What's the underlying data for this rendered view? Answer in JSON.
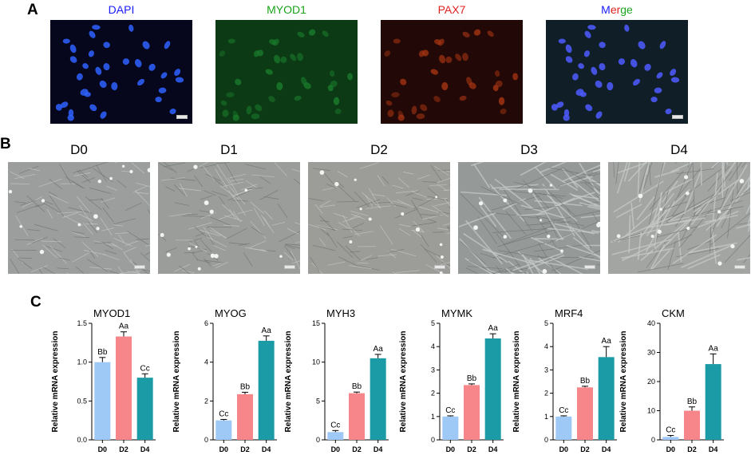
{
  "panels": {
    "a": "A",
    "b": "B",
    "c": "C"
  },
  "fluorescence": [
    {
      "title": "DAPI",
      "color": "#1a1aff",
      "bg": "#06061c",
      "dot": "#2f63ff"
    },
    {
      "title": "MYOD1",
      "color": "#1aa31a",
      "bg": "#0b3a14",
      "dot": "#1a7a2c"
    },
    {
      "title": "PAX7",
      "color": "#e02020",
      "bg": "#220806",
      "dot": "#a23312"
    },
    {
      "title_parts": [
        "M",
        "er",
        "ge"
      ],
      "title_colors": [
        "#1a1aff",
        "#e02020",
        "#1aa31a"
      ],
      "bg": "#101e28",
      "dot": "#4e5cff"
    }
  ],
  "brightfield": [
    {
      "title": "D0"
    },
    {
      "title": "D1"
    },
    {
      "title": "D2"
    },
    {
      "title": "D3"
    },
    {
      "title": "D4"
    }
  ],
  "colors": {
    "D0": "#9ec8f5",
    "D2": "#f7868a",
    "D4": "#1b9ba6"
  },
  "chart_data": [
    {
      "type": "bar",
      "title": "MYOD1",
      "categories": [
        "D0",
        "D2",
        "D4"
      ],
      "values": [
        1.0,
        1.33,
        0.8
      ],
      "errors": [
        0.06,
        0.06,
        0.05
      ],
      "labels": [
        "Bb",
        "Aa",
        "Cc"
      ],
      "ylim": [
        0.0,
        1.5
      ],
      "yticks": [
        "0.0",
        "0.5",
        "1.0",
        "1.5"
      ],
      "ytick_values": [
        0,
        0.5,
        1.0,
        1.5
      ],
      "ylabel": "Relative mRNA expression"
    },
    {
      "type": "bar",
      "title": "MYOG",
      "categories": [
        "D0",
        "D2",
        "D4"
      ],
      "values": [
        1.0,
        2.35,
        5.1
      ],
      "errors": [
        0.05,
        0.1,
        0.25
      ],
      "labels": [
        "Cc",
        "Bb",
        "Aa"
      ],
      "ylim": [
        0,
        6
      ],
      "yticks": [
        "0",
        "2",
        "4",
        "6"
      ],
      "ytick_values": [
        0,
        2,
        4,
        6
      ],
      "ylabel": "Relative mRNA expression"
    },
    {
      "type": "bar",
      "title": "MYH3",
      "categories": [
        "D0",
        "D2",
        "D4"
      ],
      "values": [
        1.0,
        6.0,
        10.5
      ],
      "errors": [
        0.2,
        0.15,
        0.5
      ],
      "labels": [
        "Cc",
        "Bb",
        "Aa"
      ],
      "ylim": [
        0,
        15
      ],
      "yticks": [
        "0",
        "5",
        "10",
        "15"
      ],
      "ytick_values": [
        0,
        5,
        10,
        15
      ],
      "ylabel": "Relative mRNA expression"
    },
    {
      "type": "bar",
      "title": "MYMK",
      "categories": [
        "D0",
        "D2",
        "D4"
      ],
      "values": [
        1.0,
        2.35,
        4.35
      ],
      "errors": [
        0.03,
        0.05,
        0.2
      ],
      "labels": [
        "Cc",
        "Bb",
        "Aa"
      ],
      "ylim": [
        0,
        5
      ],
      "yticks": [
        "0",
        "1",
        "2",
        "3",
        "4",
        "5"
      ],
      "ytick_values": [
        0,
        1,
        2,
        3,
        4,
        5
      ],
      "ylabel": "Relative mRNA expression"
    },
    {
      "type": "bar",
      "title": "MRF4",
      "categories": [
        "D0",
        "D2",
        "D4"
      ],
      "values": [
        1.0,
        2.25,
        3.55
      ],
      "errors": [
        0.03,
        0.05,
        0.45
      ],
      "labels": [
        "Cc",
        "Bb",
        "Aa"
      ],
      "ylim": [
        0,
        5
      ],
      "yticks": [
        "0",
        "1",
        "2",
        "3",
        "4",
        "5"
      ],
      "ytick_values": [
        0,
        1,
        2,
        3,
        4,
        5
      ],
      "ylabel": "Relative mRNA expression"
    },
    {
      "type": "bar",
      "title": "CKM",
      "categories": [
        "D0",
        "D2",
        "D4"
      ],
      "values": [
        1.0,
        10.0,
        26.0
      ],
      "errors": [
        0.5,
        1.3,
        3.5
      ],
      "labels": [
        "Cc",
        "Bb",
        "Aa"
      ],
      "ylim": [
        0,
        40
      ],
      "yticks": [
        "0",
        "10",
        "20",
        "30",
        "40"
      ],
      "ytick_values": [
        0,
        10,
        20,
        30,
        40
      ],
      "ylabel": "Relative mRNA expression"
    }
  ]
}
